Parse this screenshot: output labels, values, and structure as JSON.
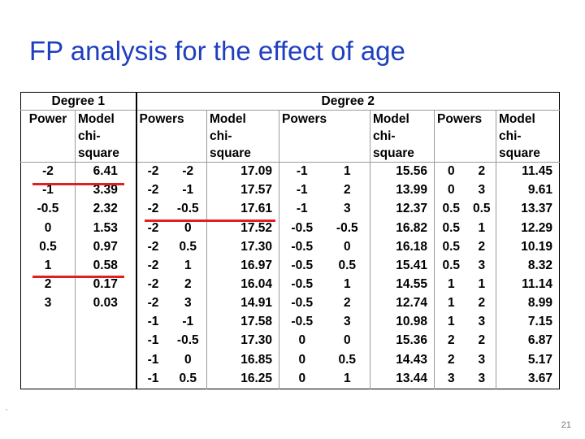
{
  "title": "FP analysis for the effect of age",
  "page_number": "21",
  "corner_mark": ",",
  "table": {
    "group_headers": {
      "degree1": "Degree 1",
      "degree2": "Degree 2"
    },
    "col_headers": {
      "power": "Power",
      "model_chi": [
        "Model",
        "chi-",
        "square"
      ],
      "powers": "Powers"
    },
    "degree1_rows": [
      [
        "-2",
        "6.41"
      ],
      [
        "-1",
        "3.39"
      ],
      [
        "-0.5",
        "2.32"
      ],
      [
        "0",
        "1.53"
      ],
      [
        "0.5",
        "0.97"
      ],
      [
        "1",
        "0.58"
      ],
      [
        "2",
        "0.17"
      ],
      [
        "3",
        "0.03"
      ],
      [
        "",
        ""
      ],
      [
        "",
        ""
      ],
      [
        "",
        ""
      ],
      [
        "",
        ""
      ]
    ],
    "degree2_groups": [
      [
        [
          "-2",
          "-2",
          "17.09"
        ],
        [
          "-2",
          "-1",
          "17.57"
        ],
        [
          "-2",
          "-0.5",
          "17.61"
        ],
        [
          "-2",
          "0",
          "17.52"
        ],
        [
          "-2",
          "0.5",
          "17.30"
        ],
        [
          "-2",
          "1",
          "16.97"
        ],
        [
          "-2",
          "2",
          "16.04"
        ],
        [
          "-2",
          "3",
          "14.91"
        ],
        [
          "-1",
          "-1",
          "17.58"
        ],
        [
          "-1",
          "-0.5",
          "17.30"
        ],
        [
          "-1",
          "0",
          "16.85"
        ],
        [
          "-1",
          "0.5",
          "16.25"
        ]
      ],
      [
        [
          "-1",
          "1",
          "15.56"
        ],
        [
          "-1",
          "2",
          "13.99"
        ],
        [
          "-1",
          "3",
          "12.37"
        ],
        [
          "-0.5",
          "-0.5",
          "16.82"
        ],
        [
          "-0.5",
          "0",
          "16.18"
        ],
        [
          "-0.5",
          "0.5",
          "15.41"
        ],
        [
          "-0.5",
          "1",
          "14.55"
        ],
        [
          "-0.5",
          "2",
          "12.74"
        ],
        [
          "-0.5",
          "3",
          "10.98"
        ],
        [
          "0",
          "0",
          "15.36"
        ],
        [
          "0",
          "0.5",
          "14.43"
        ],
        [
          "0",
          "1",
          "13.44"
        ]
      ],
      [
        [
          "0",
          "2",
          "11.45"
        ],
        [
          "0",
          "3",
          "9.61"
        ],
        [
          "0.5",
          "0.5",
          "13.37"
        ],
        [
          "0.5",
          "1",
          "12.29"
        ],
        [
          "0.5",
          "2",
          "10.19"
        ],
        [
          "0.5",
          "3",
          "8.32"
        ],
        [
          "1",
          "1",
          "11.14"
        ],
        [
          "1",
          "2",
          "8.99"
        ],
        [
          "1",
          "3",
          "7.15"
        ],
        [
          "2",
          "2",
          "6.87"
        ],
        [
          "2",
          "3",
          "5.17"
        ],
        [
          "3",
          "3",
          "3.67"
        ]
      ]
    ],
    "highlight_color": "#e02020"
  }
}
